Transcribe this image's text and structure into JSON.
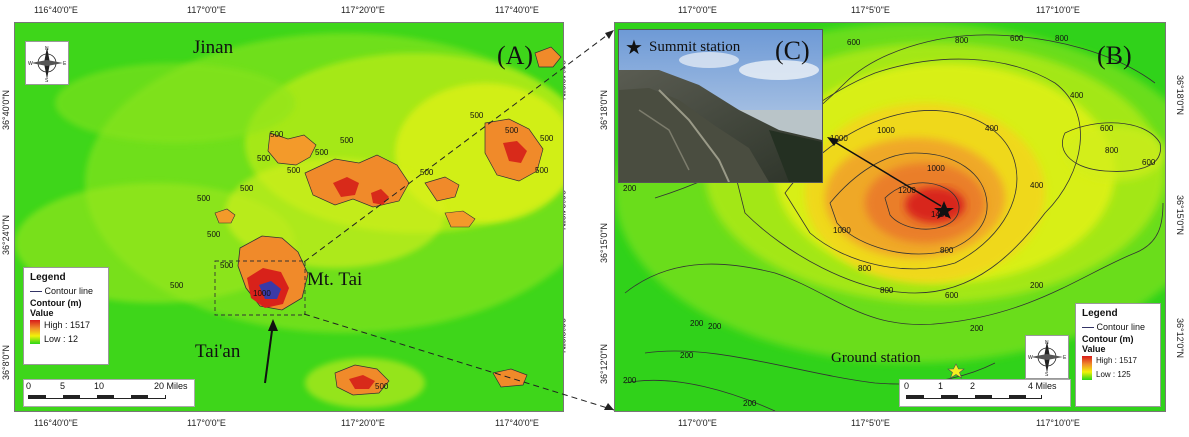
{
  "panel_a": {
    "label": "(A)",
    "top_ticks": [
      "116°40'0\"E",
      "117°0'0\"E",
      "117°20'0\"E",
      "117°40'0\"E"
    ],
    "bottom_ticks": [
      "116°40'0\"E",
      "117°0'0\"E",
      "117°20'0\"E",
      "117°40'0\"E"
    ],
    "left_ticks": [
      "36°40'0\"N",
      "36°24'0\"N",
      "36°8'0\"N"
    ],
    "right_ticks": [
      "36°40'0\"N",
      "36°24'0\"N",
      "36°8'0\"N"
    ],
    "places": {
      "jinan": "Jinan",
      "mt_tai": "Mt. Tai",
      "taian": "Tai'an"
    },
    "contours": [
      "500",
      "500",
      "500",
      "500",
      "500",
      "500",
      "500",
      "500",
      "500",
      "500",
      "500",
      "500",
      "500",
      "500",
      "1000",
      "500",
      "500"
    ],
    "legend": {
      "title": "Legend",
      "line": "Contour line",
      "layer": "Contour (m)",
      "value": "Value",
      "high": "High : 1517",
      "low": "Low : 12"
    },
    "scalebar": {
      "ticks": [
        "0",
        "5",
        "10",
        "20 Miles"
      ]
    },
    "compass": {
      "n": "N",
      "s": "S",
      "e": "E",
      "w": "W"
    }
  },
  "panel_b": {
    "label": "(B)",
    "top_ticks": [
      "117°0'0\"E",
      "117°5'0\"E",
      "117°10'0\"E"
    ],
    "bottom_ticks": [
      "117°0'0\"E",
      "117°5'0\"E",
      "117°10'0\"E"
    ],
    "left_ticks": [
      "36°18'0\"N",
      "36°15'0\"N",
      "36°12'0\"N"
    ],
    "right_ticks": [
      "36°18'0\"N",
      "36°15'0\"N",
      "36°12'0\"N"
    ],
    "ground_station": "Ground station",
    "contours": [
      "600",
      "800",
      "600",
      "800",
      "400",
      "600",
      "800",
      "600",
      "1000",
      "1000",
      "1000",
      "1200",
      "1400",
      "1000",
      "800",
      "800",
      "800",
      "600",
      "400",
      "400",
      "200",
      "200",
      "200",
      "200",
      "200",
      "200",
      "200",
      "200"
    ],
    "legend": {
      "title": "Legend",
      "line": "Contour line",
      "layer": "Contour (m)",
      "value": "Value",
      "high": "High : 1517",
      "low": "Low : 125"
    },
    "scalebar": {
      "ticks": [
        "0",
        "1",
        "2",
        "4 Miles"
      ]
    },
    "compass": {
      "n": "N",
      "s": "S",
      "e": "E",
      "w": "W"
    }
  },
  "panel_c": {
    "label": "(C)",
    "summit_station": "Summit station"
  },
  "colors": {
    "low_green": "#2ad61a",
    "mid_yellow": "#f2f20a",
    "orange": "#f08a2a",
    "high_red": "#d81a1a"
  }
}
